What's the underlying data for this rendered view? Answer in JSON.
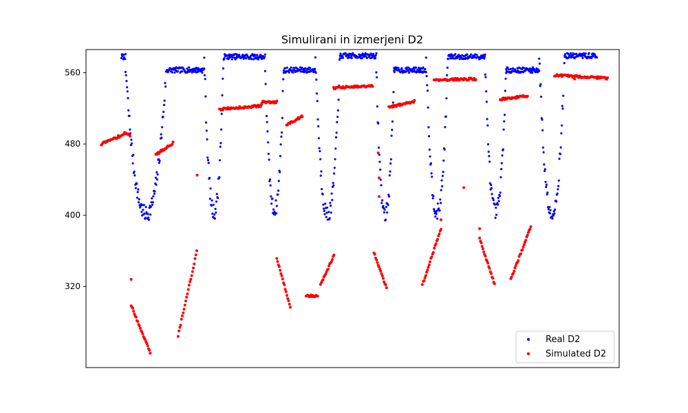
{
  "chart_data": {
    "type": "scatter",
    "title": "Simulirani in izmerjeni D2",
    "xlabel": "",
    "ylabel": "",
    "xlim": [
      -33,
      1113
    ],
    "ylim": [
      229,
      586
    ],
    "x_ticks_visible": false,
    "yticks": [
      320,
      400,
      480,
      560
    ],
    "grid": false,
    "legend_position": "bottom-right",
    "series": [
      {
        "name": "Real D2",
        "color": "#0000ff",
        "segments": [
          {
            "type": "plateau",
            "x0": 43,
            "x1": 52,
            "level": 578
          },
          {
            "type": "valley",
            "x0": 52,
            "x1": 140,
            "min": 398,
            "top": 563
          },
          {
            "type": "plateau",
            "x0": 140,
            "x1": 221,
            "level": 563
          },
          {
            "type": "valley",
            "x0": 221,
            "x1": 263,
            "min": 400,
            "top": 578
          },
          {
            "type": "plateau",
            "x0": 263,
            "x1": 352,
            "level": 578
          },
          {
            "type": "valley",
            "x0": 352,
            "x1": 392,
            "min": 402,
            "top": 563
          },
          {
            "type": "plateau",
            "x0": 392,
            "x1": 460,
            "level": 563
          },
          {
            "type": "valley",
            "x0": 460,
            "x1": 513,
            "min": 397,
            "top": 579
          },
          {
            "type": "plateau",
            "x0": 513,
            "x1": 591,
            "level": 579
          },
          {
            "type": "valley",
            "x0": 591,
            "x1": 629,
            "min": 398,
            "top": 563
          },
          {
            "type": "plateau",
            "x0": 629,
            "x1": 698,
            "level": 563
          },
          {
            "type": "valley",
            "x0": 698,
            "x1": 745,
            "min": 400,
            "top": 578
          },
          {
            "type": "plateau",
            "x0": 745,
            "x1": 825,
            "level": 578
          },
          {
            "type": "valley",
            "x0": 825,
            "x1": 870,
            "min": 400,
            "top": 563
          },
          {
            "type": "plateau",
            "x0": 870,
            "x1": 941,
            "level": 563
          },
          {
            "type": "valley",
            "x0": 941,
            "x1": 996,
            "min": 398,
            "top": 578
          },
          {
            "type": "plateau",
            "x0": 996,
            "x1": 1065,
            "level": 579
          }
        ]
      },
      {
        "name": "Simulated D2",
        "color": "#ff0000",
        "segments": [
          {
            "x0": 0,
            "x1": 49,
            "y0": 480,
            "y1": 491
          },
          {
            "x0": 50,
            "x1": 62,
            "y0": 493,
            "y1": 489
          },
          {
            "x0": 117,
            "x1": 154,
            "y0": 468,
            "y1": 481
          },
          {
            "x0": 254,
            "x1": 344,
            "y0": 519,
            "y1": 523
          },
          {
            "x0": 345,
            "x1": 377,
            "y0": 527,
            "y1": 527
          },
          {
            "x0": 398,
            "x1": 432,
            "y0": 502,
            "y1": 511
          },
          {
            "x0": 499,
            "x1": 583,
            "y0": 543,
            "y1": 545
          },
          {
            "x0": 618,
            "x1": 673,
            "y0": 521,
            "y1": 528
          },
          {
            "x0": 715,
            "x1": 805,
            "y0": 552,
            "y1": 553
          },
          {
            "x0": 857,
            "x1": 916,
            "y0": 530,
            "y1": 534
          },
          {
            "x0": 974,
            "x1": 1088,
            "y0": 557,
            "y1": 554
          },
          {
            "x0": 64,
            "x1": 105,
            "y0": 299,
            "y1": 246
          },
          {
            "x0": 165,
            "x1": 205,
            "y0": 265,
            "y1": 359
          },
          {
            "x0": 377,
            "x1": 406,
            "y0": 352,
            "y1": 297
          },
          {
            "x0": 440,
            "x1": 465,
            "y0": 310,
            "y1": 309
          },
          {
            "x0": 471,
            "x1": 500,
            "y0": 322,
            "y1": 355
          },
          {
            "x0": 586,
            "x1": 613,
            "y0": 358,
            "y1": 318
          },
          {
            "x0": 690,
            "x1": 730,
            "y0": 322,
            "y1": 385
          },
          {
            "x0": 813,
            "x1": 845,
            "y0": 374,
            "y1": 323
          },
          {
            "x0": 880,
            "x1": 923,
            "y0": 328,
            "y1": 387
          }
        ],
        "scattered_points": [
          [
            64,
            328
          ],
          [
            206,
            445
          ],
          [
            595,
            470
          ],
          [
            597,
            442
          ],
          [
            597,
            421
          ],
          [
            730,
            395
          ],
          [
            779,
            431
          ],
          [
            813,
            385
          ],
          [
            1017,
            553
          ]
        ]
      }
    ]
  }
}
